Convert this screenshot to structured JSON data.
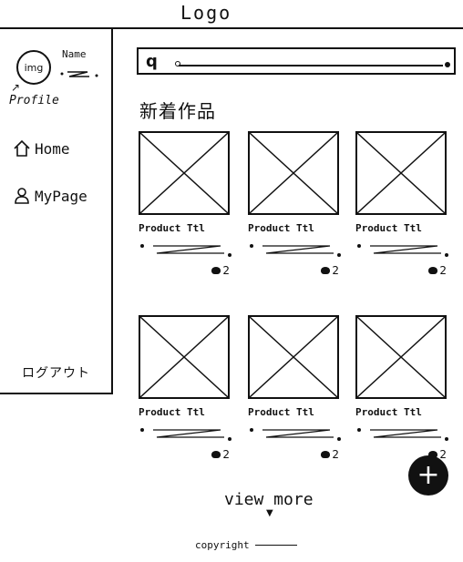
{
  "header": {
    "logo": "Logo"
  },
  "sidebar": {
    "avatar_label": "img",
    "name_label": "Name",
    "profile_label": "Profile",
    "nav": [
      {
        "label": "Home",
        "icon": "home-icon"
      },
      {
        "label": "MyPage",
        "icon": "user-icon"
      }
    ],
    "logout_label": "ログアウト"
  },
  "search": {
    "icon": "search-icon"
  },
  "main": {
    "section_title": "新着作品",
    "products": [
      {
        "title": "Product Ttl",
        "likes": "2"
      },
      {
        "title": "Product Ttl",
        "likes": "2"
      },
      {
        "title": "Product Ttl",
        "likes": "2"
      },
      {
        "title": "Product Ttl",
        "likes": "2"
      },
      {
        "title": "Product Ttl",
        "likes": "2"
      },
      {
        "title": "Product Ttl",
        "likes": "2"
      }
    ],
    "view_more": "view more"
  },
  "fab": {
    "label": "+"
  },
  "footer": {
    "copyright": "copyright"
  }
}
